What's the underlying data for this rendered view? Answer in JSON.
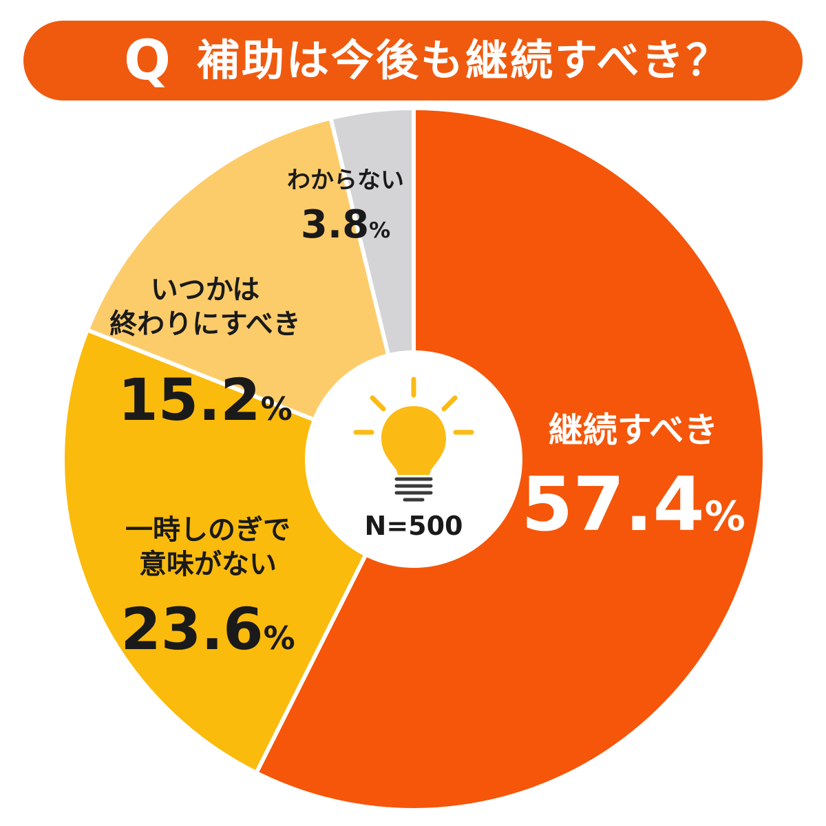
{
  "header": {
    "q_label": "Q",
    "title": "補助は今後も継続すべき？"
  },
  "center": {
    "sample_size": "N=500",
    "icon": "lightbulb-icon"
  },
  "colors": {
    "title_bar": "#f05a0e",
    "continue": "#f5560a",
    "meaningless": "#fbbb0c",
    "end_someday": "#fdcc6a",
    "unknown": "#d4d3d6",
    "bulb": "#fbbb14"
  },
  "chart_data": {
    "type": "pie",
    "title": "補助は今後も継続すべき？",
    "unit": "%",
    "sample_size": "N=500",
    "slices": [
      {
        "label_lines": [
          "継続すべき"
        ],
        "value": 57.4,
        "display": "57.4",
        "color": "#f5560a",
        "label_color": "#ffffff"
      },
      {
        "label_lines": [
          "一時しのぎで",
          "意味がない"
        ],
        "value": 23.6,
        "display": "23.6",
        "color": "#fbbb0c",
        "label_color": "#1a1a1a"
      },
      {
        "label_lines": [
          "いつかは",
          "終わりにすべき"
        ],
        "value": 15.2,
        "display": "15.2",
        "color": "#fdcc6a",
        "label_color": "#1a1a1a"
      },
      {
        "label_lines": [
          "わからない"
        ],
        "value": 3.8,
        "display": "3.8",
        "color": "#d4d3d6",
        "label_color": "#1a1a1a"
      }
    ]
  }
}
